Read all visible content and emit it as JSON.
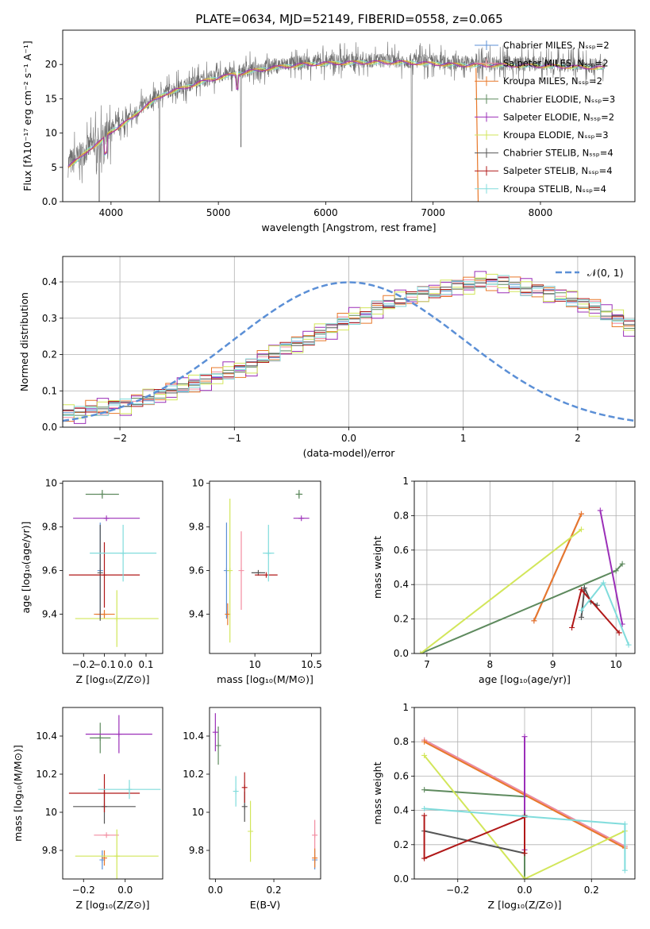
{
  "figure": {
    "title": "PLATE=0634, MJD=52149, FIBERID=0558, z=0.065"
  },
  "colors": {
    "Chabrier MILES": "#5b8fd6",
    "Salpeter MILES": "#f28ca0",
    "Kroupa MILES": "#e8782a",
    "Chabrier ELODIE": "#5e8a5e",
    "Salpeter ELODIE": "#9b2fb8",
    "Kroupa ELODIE": "#d2e65a",
    "Chabrier STELIB": "#555555",
    "Salpeter STELIB": "#b01818",
    "Kroupa STELIB": "#80dcdc"
  },
  "chart_data": [
    {
      "id": "spectrum",
      "type": "line",
      "xlabel": "wavelength [Angstrom, rest frame]",
      "ylabel": "Flux [fλ10⁻¹⁷ erg cm⁻² s⁻¹ A⁻¹]",
      "xlim": [
        3550,
        8880
      ],
      "ylim": [
        0,
        25
      ],
      "xticks": [
        4000,
        5000,
        6000,
        7000,
        8000
      ],
      "yticks": [
        0,
        5,
        10,
        15,
        20
      ],
      "grid": false,
      "legend_position": "top-right",
      "legend": [
        "Chabrier MILES, Nₛₛₚ=2",
        "Salpeter MILES, Nₛₛₚ=2",
        "Kroupa MILES, Nₛₛₚ=2",
        "Chabrier ELODIE, Nₛₛₚ=3",
        "Salpeter ELODIE, Nₛₛₚ=2",
        "Kroupa ELODIE, Nₛₛₚ=3",
        "Chabrier STELIB, Nₛₛₚ=4",
        "Salpeter STELIB, Nₛₛₚ=4",
        "Kroupa STELIB, Nₛₛₚ=4"
      ],
      "continuum": {
        "x": [
          3600,
          3700,
          3800,
          3900,
          4000,
          4100,
          4200,
          4300,
          4500,
          4700,
          4900,
          5100,
          5300,
          5500,
          5800,
          6100,
          6400,
          6700,
          7000,
          7300,
          7600,
          8000,
          8400,
          8600
        ],
        "y": [
          5.5,
          6.5,
          8,
          9,
          10.5,
          11.5,
          12.5,
          14,
          16,
          17,
          18,
          18.7,
          19.3,
          19.8,
          20.3,
          20.5,
          20.6,
          20.6,
          20.4,
          20.2,
          20.2,
          20.1,
          19.9,
          19.8
        ]
      },
      "model_colors": [
        "#80dcdc",
        "#d2e65a",
        "#e8782a",
        "#9b2fb8"
      ]
    },
    {
      "id": "residual-histogram",
      "type": "bar",
      "xlabel": "(data-model)/error",
      "ylabel": "Normed distribution",
      "xlim": [
        -2.5,
        2.5
      ],
      "ylim": [
        0,
        0.47
      ],
      "xticks": [
        -2,
        -1,
        0,
        1,
        2
      ],
      "yticks": [
        0.0,
        0.1,
        0.2,
        0.3,
        0.4
      ],
      "grid": true,
      "legend_position": "top-right",
      "legend": [
        "𝒩(0, 1)"
      ],
      "reference_curve": {
        "name": "𝒩(0, 1)",
        "mean": 0,
        "sigma": 1,
        "color": "#5b8fd6"
      },
      "bin_edges_start": -2.5,
      "bin_width": 0.1,
      "base_histogram": [
        0.04,
        0.04,
        0.05,
        0.05,
        0.06,
        0.06,
        0.07,
        0.08,
        0.09,
        0.1,
        0.11,
        0.12,
        0.13,
        0.14,
        0.15,
        0.16,
        0.17,
        0.19,
        0.2,
        0.22,
        0.23,
        0.24,
        0.26,
        0.27,
        0.29,
        0.3,
        0.31,
        0.33,
        0.34,
        0.35,
        0.36,
        0.37,
        0.37,
        0.38,
        0.39,
        0.39,
        0.4,
        0.4,
        0.4,
        0.39,
        0.38,
        0.38,
        0.37,
        0.36,
        0.35,
        0.34,
        0.33,
        0.31,
        0.3,
        0.28,
        0.26,
        0.25,
        0.23,
        0.22,
        0.2,
        0.18,
        0.17,
        0.15,
        0.14,
        0.13,
        0.12,
        0.11,
        0.1,
        0.09,
        0.08,
        0.07,
        0.07,
        0.06,
        0.05,
        0.05,
        0.04,
        0.04,
        0.03,
        0.03,
        0.03,
        0.03,
        0.02,
        0.02,
        0.02,
        0.02
      ],
      "series_offsets": [
        0.012,
        -0.018,
        0.024,
        -0.01,
        0.03,
        -0.025,
        0.008,
        -0.014,
        0.018
      ]
    },
    {
      "id": "age-vs-Z",
      "type": "scatter",
      "xlabel": "Z [log₁₀(Z/Z⊙)]",
      "ylabel": "age  [log₁₀(age/yr)]",
      "xlim": [
        -0.3,
        0.18
      ],
      "ylim": [
        9.22,
        10.01
      ],
      "xticks": [
        -0.2,
        -0.1,
        0.0,
        0.1
      ],
      "yticks": [
        9.4,
        9.6,
        9.8,
        10.0
      ],
      "grid": false,
      "points": [
        {
          "series": "Chabrier MILES",
          "x": -0.12,
          "y": 9.6,
          "xerr": 0.0,
          "yerr": 0.22
        },
        {
          "series": "Salpeter MILES",
          "x": -0.12,
          "y": 9.4,
          "xerr": 0.02,
          "yerr": 0.0
        },
        {
          "series": "Kroupa MILES",
          "x": -0.1,
          "y": 9.4,
          "xerr": 0.05,
          "yerr": 0.02
        },
        {
          "series": "Chabrier ELODIE",
          "x": -0.11,
          "y": 9.95,
          "xerr": 0.08,
          "yerr": 0.02
        },
        {
          "series": "Salpeter ELODIE",
          "x": -0.09,
          "y": 9.84,
          "xerr": 0.16,
          "yerr": 0.0
        },
        {
          "series": "Kroupa ELODIE",
          "x": -0.04,
          "y": 9.38,
          "xerr": 0.2,
          "yerr": 0.13
        },
        {
          "series": "Chabrier STELIB",
          "x": -0.12,
          "y": 9.59,
          "xerr": 0.0,
          "yerr": 0.22
        },
        {
          "series": "Salpeter STELIB",
          "x": -0.1,
          "y": 9.58,
          "xerr": 0.17,
          "yerr": 0.15
        },
        {
          "series": "Kroupa STELIB",
          "x": -0.01,
          "y": 9.68,
          "xerr": 0.16,
          "yerr": 0.13
        }
      ]
    },
    {
      "id": "age-vs-mass",
      "type": "scatter",
      "xlabel": "mass [log₁₀(M/M⊙)]",
      "ylabel": "",
      "xlim": [
        9.6,
        10.58
      ],
      "ylim": [
        9.22,
        10.01
      ],
      "xticks": [
        10.0,
        10.5
      ],
      "yticks": [
        9.4,
        9.6,
        9.8,
        10.0
      ],
      "grid": false,
      "points": [
        {
          "series": "Chabrier MILES",
          "x": 9.75,
          "y": 9.6,
          "xerr": 0.0,
          "yerr": 0.22
        },
        {
          "series": "Salpeter MILES",
          "x": 9.88,
          "y": 9.6,
          "xerr": 0.0,
          "yerr": 0.18
        },
        {
          "series": "Kroupa MILES",
          "x": 9.76,
          "y": 9.4,
          "xerr": 0.0,
          "yerr": 0.05
        },
        {
          "series": "Chabrier ELODIE",
          "x": 10.39,
          "y": 9.95,
          "xerr": 0.03,
          "yerr": 0.02
        },
        {
          "series": "Salpeter ELODIE",
          "x": 10.41,
          "y": 9.84,
          "xerr": 0.07,
          "yerr": 0.0
        },
        {
          "series": "Kroupa ELODIE",
          "x": 9.78,
          "y": 9.6,
          "xerr": 0.0,
          "yerr": 0.33
        },
        {
          "series": "Chabrier STELIB",
          "x": 10.03,
          "y": 9.59,
          "xerr": 0.06,
          "yerr": 0.0
        },
        {
          "series": "Salpeter STELIB",
          "x": 10.1,
          "y": 9.58,
          "xerr": 0.1,
          "yerr": 0.0
        },
        {
          "series": "Kroupa STELIB",
          "x": 10.12,
          "y": 9.68,
          "xerr": 0.05,
          "yerr": 0.13
        }
      ]
    },
    {
      "id": "weight-vs-age",
      "type": "line",
      "xlabel": "age  [log₁₀(age/yr)]",
      "ylabel": "mass weight",
      "xlim": [
        6.8,
        10.3
      ],
      "ylim": [
        0.0,
        1.0
      ],
      "xticks": [
        7,
        8,
        9,
        10
      ],
      "yticks": [
        0.0,
        0.2,
        0.4,
        0.6,
        0.8,
        1.0
      ],
      "grid": true,
      "series": [
        {
          "name": "Chabrier MILES",
          "x": [
            8.7,
            9.45
          ],
          "y": [
            0.19,
            0.81
          ]
        },
        {
          "name": "Salpeter MILES",
          "x": [
            8.7,
            9.45
          ],
          "y": [
            0.19,
            0.81
          ]
        },
        {
          "name": "Kroupa MILES",
          "x": [
            8.7,
            9.45
          ],
          "y": [
            0.19,
            0.81
          ]
        },
        {
          "name": "Chabrier ELODIE",
          "x": [
            6.9,
            10.0,
            10.1
          ],
          "y": [
            0.0,
            0.48,
            0.52
          ]
        },
        {
          "name": "Salpeter ELODIE",
          "x": [
            9.75,
            10.1
          ],
          "y": [
            0.83,
            0.17
          ]
        },
        {
          "name": "Kroupa ELODIE",
          "x": [
            6.9,
            9.45
          ],
          "y": [
            0.0,
            0.72
          ]
        },
        {
          "name": "Chabrier STELIB",
          "x": [
            9.45,
            9.5,
            9.6,
            9.7
          ],
          "y": [
            0.21,
            0.38,
            0.3,
            0.28
          ]
        },
        {
          "name": "Salpeter STELIB",
          "x": [
            9.3,
            9.45,
            10.05
          ],
          "y": [
            0.15,
            0.37,
            0.12
          ]
        },
        {
          "name": "Kroupa STELIB",
          "x": [
            9.45,
            9.8,
            10.2
          ],
          "y": [
            0.25,
            0.41,
            0.05
          ]
        }
      ]
    },
    {
      "id": "mass-vs-Z",
      "type": "scatter",
      "xlabel": "Z [log₁₀(Z/Z⊙)]",
      "ylabel": "mass [log₁₀(M/M⊙)]",
      "xlim": [
        -0.3,
        0.18
      ],
      "ylim": [
        9.65,
        10.55
      ],
      "xticks": [
        -0.2,
        0.0
      ],
      "yticks": [
        9.8,
        10.0,
        10.2,
        10.4
      ],
      "grid": false,
      "points": [
        {
          "series": "Chabrier MILES",
          "x": -0.11,
          "y": 9.75,
          "xerr": 0.0,
          "yerr": 0.05
        },
        {
          "series": "Salpeter MILES",
          "x": -0.09,
          "y": 9.88,
          "xerr": 0.06,
          "yerr": 0.0
        },
        {
          "series": "Kroupa MILES",
          "x": -0.1,
          "y": 9.76,
          "xerr": 0.0,
          "yerr": 0.04
        },
        {
          "series": "Chabrier ELODIE",
          "x": -0.12,
          "y": 10.39,
          "xerr": 0.05,
          "yerr": 0.08
        },
        {
          "series": "Salpeter ELODIE",
          "x": -0.03,
          "y": 10.41,
          "xerr": 0.16,
          "yerr": 0.1
        },
        {
          "series": "Kroupa ELODIE",
          "x": -0.04,
          "y": 9.77,
          "xerr": 0.2,
          "yerr": 0.14
        },
        {
          "series": "Chabrier STELIB",
          "x": -0.1,
          "y": 10.03,
          "xerr": 0.15,
          "yerr": 0.09
        },
        {
          "series": "Salpeter STELIB",
          "x": -0.1,
          "y": 10.1,
          "xerr": 0.17,
          "yerr": 0.1
        },
        {
          "series": "Kroupa STELIB",
          "x": 0.02,
          "y": 10.12,
          "xerr": 0.15,
          "yerr": 0.05
        }
      ]
    },
    {
      "id": "mass-vs-EBV",
      "type": "scatter",
      "xlabel": "E(B-V)",
      "ylabel": "",
      "xlim": [
        -0.02,
        0.36
      ],
      "ylim": [
        9.65,
        10.55
      ],
      "xticks": [
        0.0,
        0.2
      ],
      "yticks": [
        9.8,
        10.0,
        10.2,
        10.4
      ],
      "grid": false,
      "points": [
        {
          "series": "Chabrier MILES",
          "x": 0.34,
          "y": 9.75,
          "xerr": 0.0,
          "yerr": 0.05
        },
        {
          "series": "Salpeter MILES",
          "x": 0.34,
          "y": 9.88,
          "xerr": 0.0,
          "yerr": 0.08
        },
        {
          "series": "Kroupa MILES",
          "x": 0.34,
          "y": 9.76,
          "xerr": 0.0,
          "yerr": 0.05
        },
        {
          "series": "Chabrier ELODIE",
          "x": 0.01,
          "y": 10.35,
          "xerr": 0.0,
          "yerr": 0.1
        },
        {
          "series": "Salpeter ELODIE",
          "x": 0.0,
          "y": 10.42,
          "xerr": 0.0,
          "yerr": 0.1
        },
        {
          "series": "Kroupa ELODIE",
          "x": 0.12,
          "y": 9.9,
          "xerr": 0.0,
          "yerr": 0.16
        },
        {
          "series": "Chabrier STELIB",
          "x": 0.1,
          "y": 10.03,
          "xerr": 0.0,
          "yerr": 0.08
        },
        {
          "series": "Salpeter STELIB",
          "x": 0.1,
          "y": 10.13,
          "xerr": 0.0,
          "yerr": 0.08
        },
        {
          "series": "Kroupa STELIB",
          "x": 0.07,
          "y": 10.11,
          "xerr": 0.0,
          "yerr": 0.08
        }
      ]
    },
    {
      "id": "weight-vs-Z",
      "type": "line",
      "xlabel": "Z [log₁₀(Z/Z⊙)]",
      "ylabel": "mass weight",
      "xlim": [
        -0.33,
        0.33
      ],
      "ylim": [
        0.0,
        1.0
      ],
      "xticks": [
        -0.2,
        0.0,
        0.2
      ],
      "yticks": [
        0.0,
        0.2,
        0.4,
        0.6,
        0.8,
        1.0
      ],
      "grid": true,
      "series": [
        {
          "name": "Chabrier MILES",
          "x": [
            -0.3,
            0.3
          ],
          "y": [
            0.81,
            0.19
          ]
        },
        {
          "name": "Salpeter MILES",
          "x": [
            -0.3,
            0.3
          ],
          "y": [
            0.81,
            0.19
          ]
        },
        {
          "name": "Kroupa MILES",
          "x": [
            -0.3,
            0.3
          ],
          "y": [
            0.8,
            0.18
          ]
        },
        {
          "name": "Chabrier ELODIE",
          "x": [
            -0.3,
            0.0,
            0.0
          ],
          "y": [
            0.52,
            0.48,
            0.0
          ]
        },
        {
          "name": "Salpeter ELODIE",
          "x": [
            0.0,
            0.0
          ],
          "y": [
            0.83,
            0.17
          ]
        },
        {
          "name": "Kroupa ELODIE",
          "x": [
            -0.3,
            0.0,
            0.3
          ],
          "y": [
            0.72,
            0.0,
            0.28
          ]
        },
        {
          "name": "Chabrier STELIB",
          "x": [
            -0.3,
            0.0,
            0.0
          ],
          "y": [
            0.28,
            0.15,
            0.37
          ]
        },
        {
          "name": "Salpeter STELIB",
          "x": [
            -0.3,
            -0.3,
            0.0,
            0.0
          ],
          "y": [
            0.37,
            0.12,
            0.36,
            0.15
          ]
        },
        {
          "name": "Kroupa STELIB",
          "x": [
            -0.3,
            0.3,
            0.3
          ],
          "y": [
            0.41,
            0.32,
            0.05
          ]
        }
      ]
    }
  ]
}
